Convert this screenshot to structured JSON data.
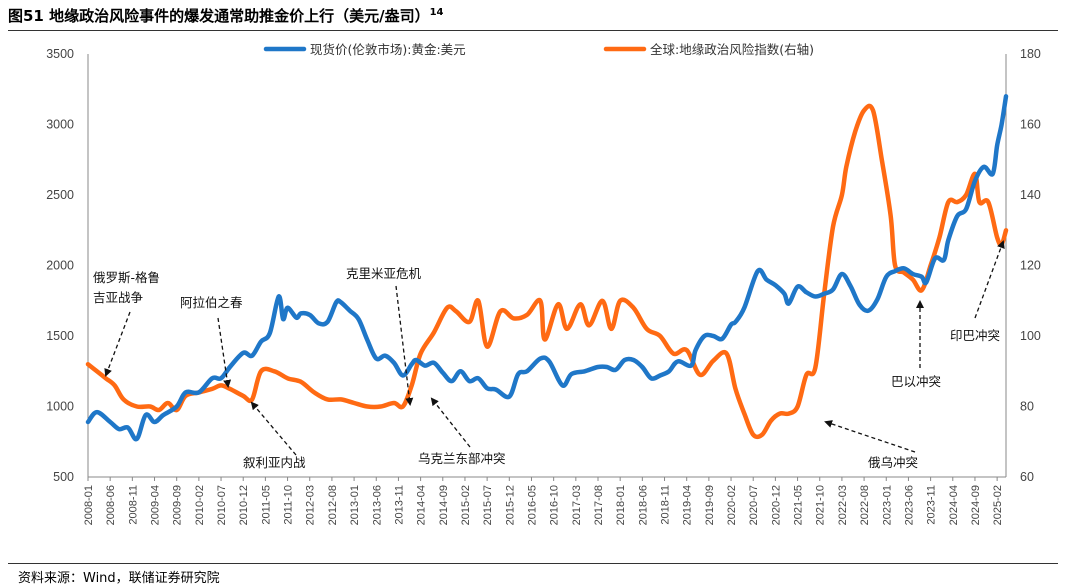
{
  "title": {
    "text": "图51 地缘政治风险事件的爆发通常助推金价上行（美元/盎司）",
    "note": "14"
  },
  "source": "资料来源：Wind，联储证券研究院",
  "chart_data": {
    "type": "line",
    "left_axis": {
      "min": 500,
      "max": 3500,
      "ticks": [
        500,
        1000,
        1500,
        2000,
        2500,
        3000,
        3500
      ]
    },
    "right_axis": {
      "min": 60,
      "max": 180,
      "ticks": [
        60,
        80,
        100,
        120,
        140,
        160,
        180
      ]
    },
    "x_tick_labels": [
      "2008-01",
      "2008-06",
      "2008-11",
      "2009-04",
      "2009-09",
      "2010-02",
      "2010-07",
      "2010-12",
      "2011-05",
      "2011-10",
      "2012-03",
      "2012-08",
      "2013-01",
      "2013-06",
      "2013-11",
      "2014-04",
      "2014-09",
      "2015-02",
      "2015-07",
      "2015-12",
      "2016-05",
      "2016-10",
      "2017-03",
      "2017-08",
      "2018-01",
      "2018-06",
      "2018-11",
      "2019-04",
      "2019-09",
      "2020-02",
      "2020-07",
      "2020-12",
      "2021-05",
      "2021-10",
      "2022-03",
      "2022-08",
      "2023-01",
      "2023-06",
      "2023-11",
      "2024-04",
      "2024-09",
      "2025-02"
    ],
    "series": [
      {
        "name": "现货价(伦敦市场):黄金:美元",
        "axis": "left",
        "color": "#1f77c8",
        "x": [
          "2008-01",
          "2008-03",
          "2008-06",
          "2008-08",
          "2008-10",
          "2008-12",
          "2009-02",
          "2009-04",
          "2009-06",
          "2009-09",
          "2009-11",
          "2010-02",
          "2010-05",
          "2010-07",
          "2010-09",
          "2010-12",
          "2011-02",
          "2011-04",
          "2011-06",
          "2011-08",
          "2011-09",
          "2011-10",
          "2011-12",
          "2012-01",
          "2012-03",
          "2012-05",
          "2012-07",
          "2012-09",
          "2012-10",
          "2012-12",
          "2013-02",
          "2013-04",
          "2013-06",
          "2013-08",
          "2013-10",
          "2013-12",
          "2014-02",
          "2014-03",
          "2014-05",
          "2014-07",
          "2014-09",
          "2014-11",
          "2015-01",
          "2015-03",
          "2015-05",
          "2015-07",
          "2015-09",
          "2015-12",
          "2016-02",
          "2016-04",
          "2016-07",
          "2016-09",
          "2016-12",
          "2017-02",
          "2017-05",
          "2017-08",
          "2017-10",
          "2017-12",
          "2018-02",
          "2018-04",
          "2018-06",
          "2018-08",
          "2018-10",
          "2018-12",
          "2019-02",
          "2019-05",
          "2019-06",
          "2019-08",
          "2019-10",
          "2019-12",
          "2020-02",
          "2020-03",
          "2020-05",
          "2020-08",
          "2020-10",
          "2020-12",
          "2021-02",
          "2021-03",
          "2021-05",
          "2021-07",
          "2021-09",
          "2021-11",
          "2022-01",
          "2022-03",
          "2022-05",
          "2022-07",
          "2022-09",
          "2022-11",
          "2023-01",
          "2023-03",
          "2023-05",
          "2023-07",
          "2023-09",
          "2023-10",
          "2023-12",
          "2024-02",
          "2024-03",
          "2024-05",
          "2024-07",
          "2024-09",
          "2024-11",
          "2025-01",
          "2025-02",
          "2025-03",
          "2025-04"
        ],
        "values": [
          890,
          960,
          890,
          840,
          850,
          770,
          940,
          890,
          940,
          1000,
          1100,
          1100,
          1200,
          1200,
          1280,
          1380,
          1360,
          1460,
          1520,
          1780,
          1620,
          1700,
          1630,
          1660,
          1650,
          1590,
          1600,
          1740,
          1740,
          1680,
          1620,
          1470,
          1340,
          1360,
          1310,
          1220,
          1300,
          1330,
          1290,
          1310,
          1240,
          1180,
          1250,
          1180,
          1200,
          1130,
          1120,
          1070,
          1230,
          1250,
          1340,
          1320,
          1150,
          1230,
          1250,
          1280,
          1280,
          1260,
          1330,
          1330,
          1280,
          1200,
          1220,
          1250,
          1320,
          1290,
          1400,
          1500,
          1500,
          1480,
          1580,
          1600,
          1700,
          1960,
          1900,
          1860,
          1800,
          1730,
          1850,
          1810,
          1780,
          1800,
          1830,
          1940,
          1850,
          1720,
          1680,
          1760,
          1920,
          1960,
          1980,
          1940,
          1920,
          1880,
          2050,
          2040,
          2180,
          2350,
          2400,
          2600,
          2700,
          2650,
          2850,
          3000,
          3200
        ]
      },
      {
        "name": "全球:地缘政治风险指数(右轴)",
        "axis": "right",
        "color": "#ff6a13",
        "x": [
          "2008-01",
          "2008-03",
          "2008-05",
          "2008-07",
          "2008-09",
          "2008-12",
          "2009-03",
          "2009-05",
          "2009-07",
          "2009-09",
          "2009-11",
          "2010-02",
          "2010-05",
          "2010-07",
          "2010-09",
          "2010-12",
          "2011-02",
          "2011-04",
          "2011-07",
          "2011-10",
          "2012-01",
          "2012-04",
          "2012-07",
          "2012-10",
          "2013-01",
          "2013-04",
          "2013-07",
          "2013-10",
          "2013-12",
          "2014-02",
          "2014-04",
          "2014-07",
          "2014-10",
          "2014-12",
          "2015-03",
          "2015-05",
          "2015-07",
          "2015-10",
          "2016-01",
          "2016-04",
          "2016-07",
          "2016-08",
          "2016-11",
          "2017-01",
          "2017-04",
          "2017-06",
          "2017-09",
          "2017-11",
          "2018-01",
          "2018-04",
          "2018-07",
          "2018-10",
          "2019-01",
          "2019-04",
          "2019-07",
          "2019-10",
          "2020-01",
          "2020-03",
          "2020-05",
          "2020-07",
          "2020-09",
          "2020-11",
          "2021-01",
          "2021-03",
          "2021-05",
          "2021-07",
          "2021-09",
          "2021-11",
          "2022-01",
          "2022-03",
          "2022-04",
          "2022-06",
          "2022-08",
          "2022-10",
          "2022-12",
          "2023-02",
          "2023-03",
          "2023-05",
          "2023-07",
          "2023-09",
          "2023-11",
          "2024-01",
          "2024-03",
          "2024-05",
          "2024-07",
          "2024-09",
          "2024-10",
          "2024-12",
          "2025-02",
          "2025-03",
          "2025-04"
        ],
        "values": [
          92,
          90,
          88,
          86,
          82,
          80,
          80,
          79,
          81,
          79,
          83,
          84,
          85,
          86,
          85,
          83,
          82,
          90,
          90,
          88,
          87,
          84,
          82,
          82,
          81,
          80,
          80,
          81,
          80,
          86,
          95,
          101,
          108,
          107,
          104,
          110,
          97,
          107,
          105,
          106,
          110,
          99,
          109,
          102,
          109,
          103,
          110,
          102,
          110,
          108,
          102,
          100,
          95,
          96,
          89,
          93,
          95,
          85,
          78,
          72,
          72,
          76,
          78,
          78,
          80,
          89,
          91,
          112,
          131,
          140,
          148,
          158,
          164,
          164,
          150,
          134,
          120,
          118,
          116,
          113,
          120,
          128,
          138,
          138,
          140,
          146,
          138,
          138,
          128,
          126,
          130
        ]
      }
    ],
    "annotations": [
      {
        "text": "俄罗斯-格鲁",
        "text2": "吉亚战争"
      },
      {
        "text": "阿拉伯之春"
      },
      {
        "text": "叙利亚内战"
      },
      {
        "text": "克里米亚危机"
      },
      {
        "text": "乌克兰东部冲突"
      },
      {
        "text": "俄乌冲突"
      },
      {
        "text": "巴以冲突"
      },
      {
        "text": "印巴冲突"
      }
    ]
  }
}
